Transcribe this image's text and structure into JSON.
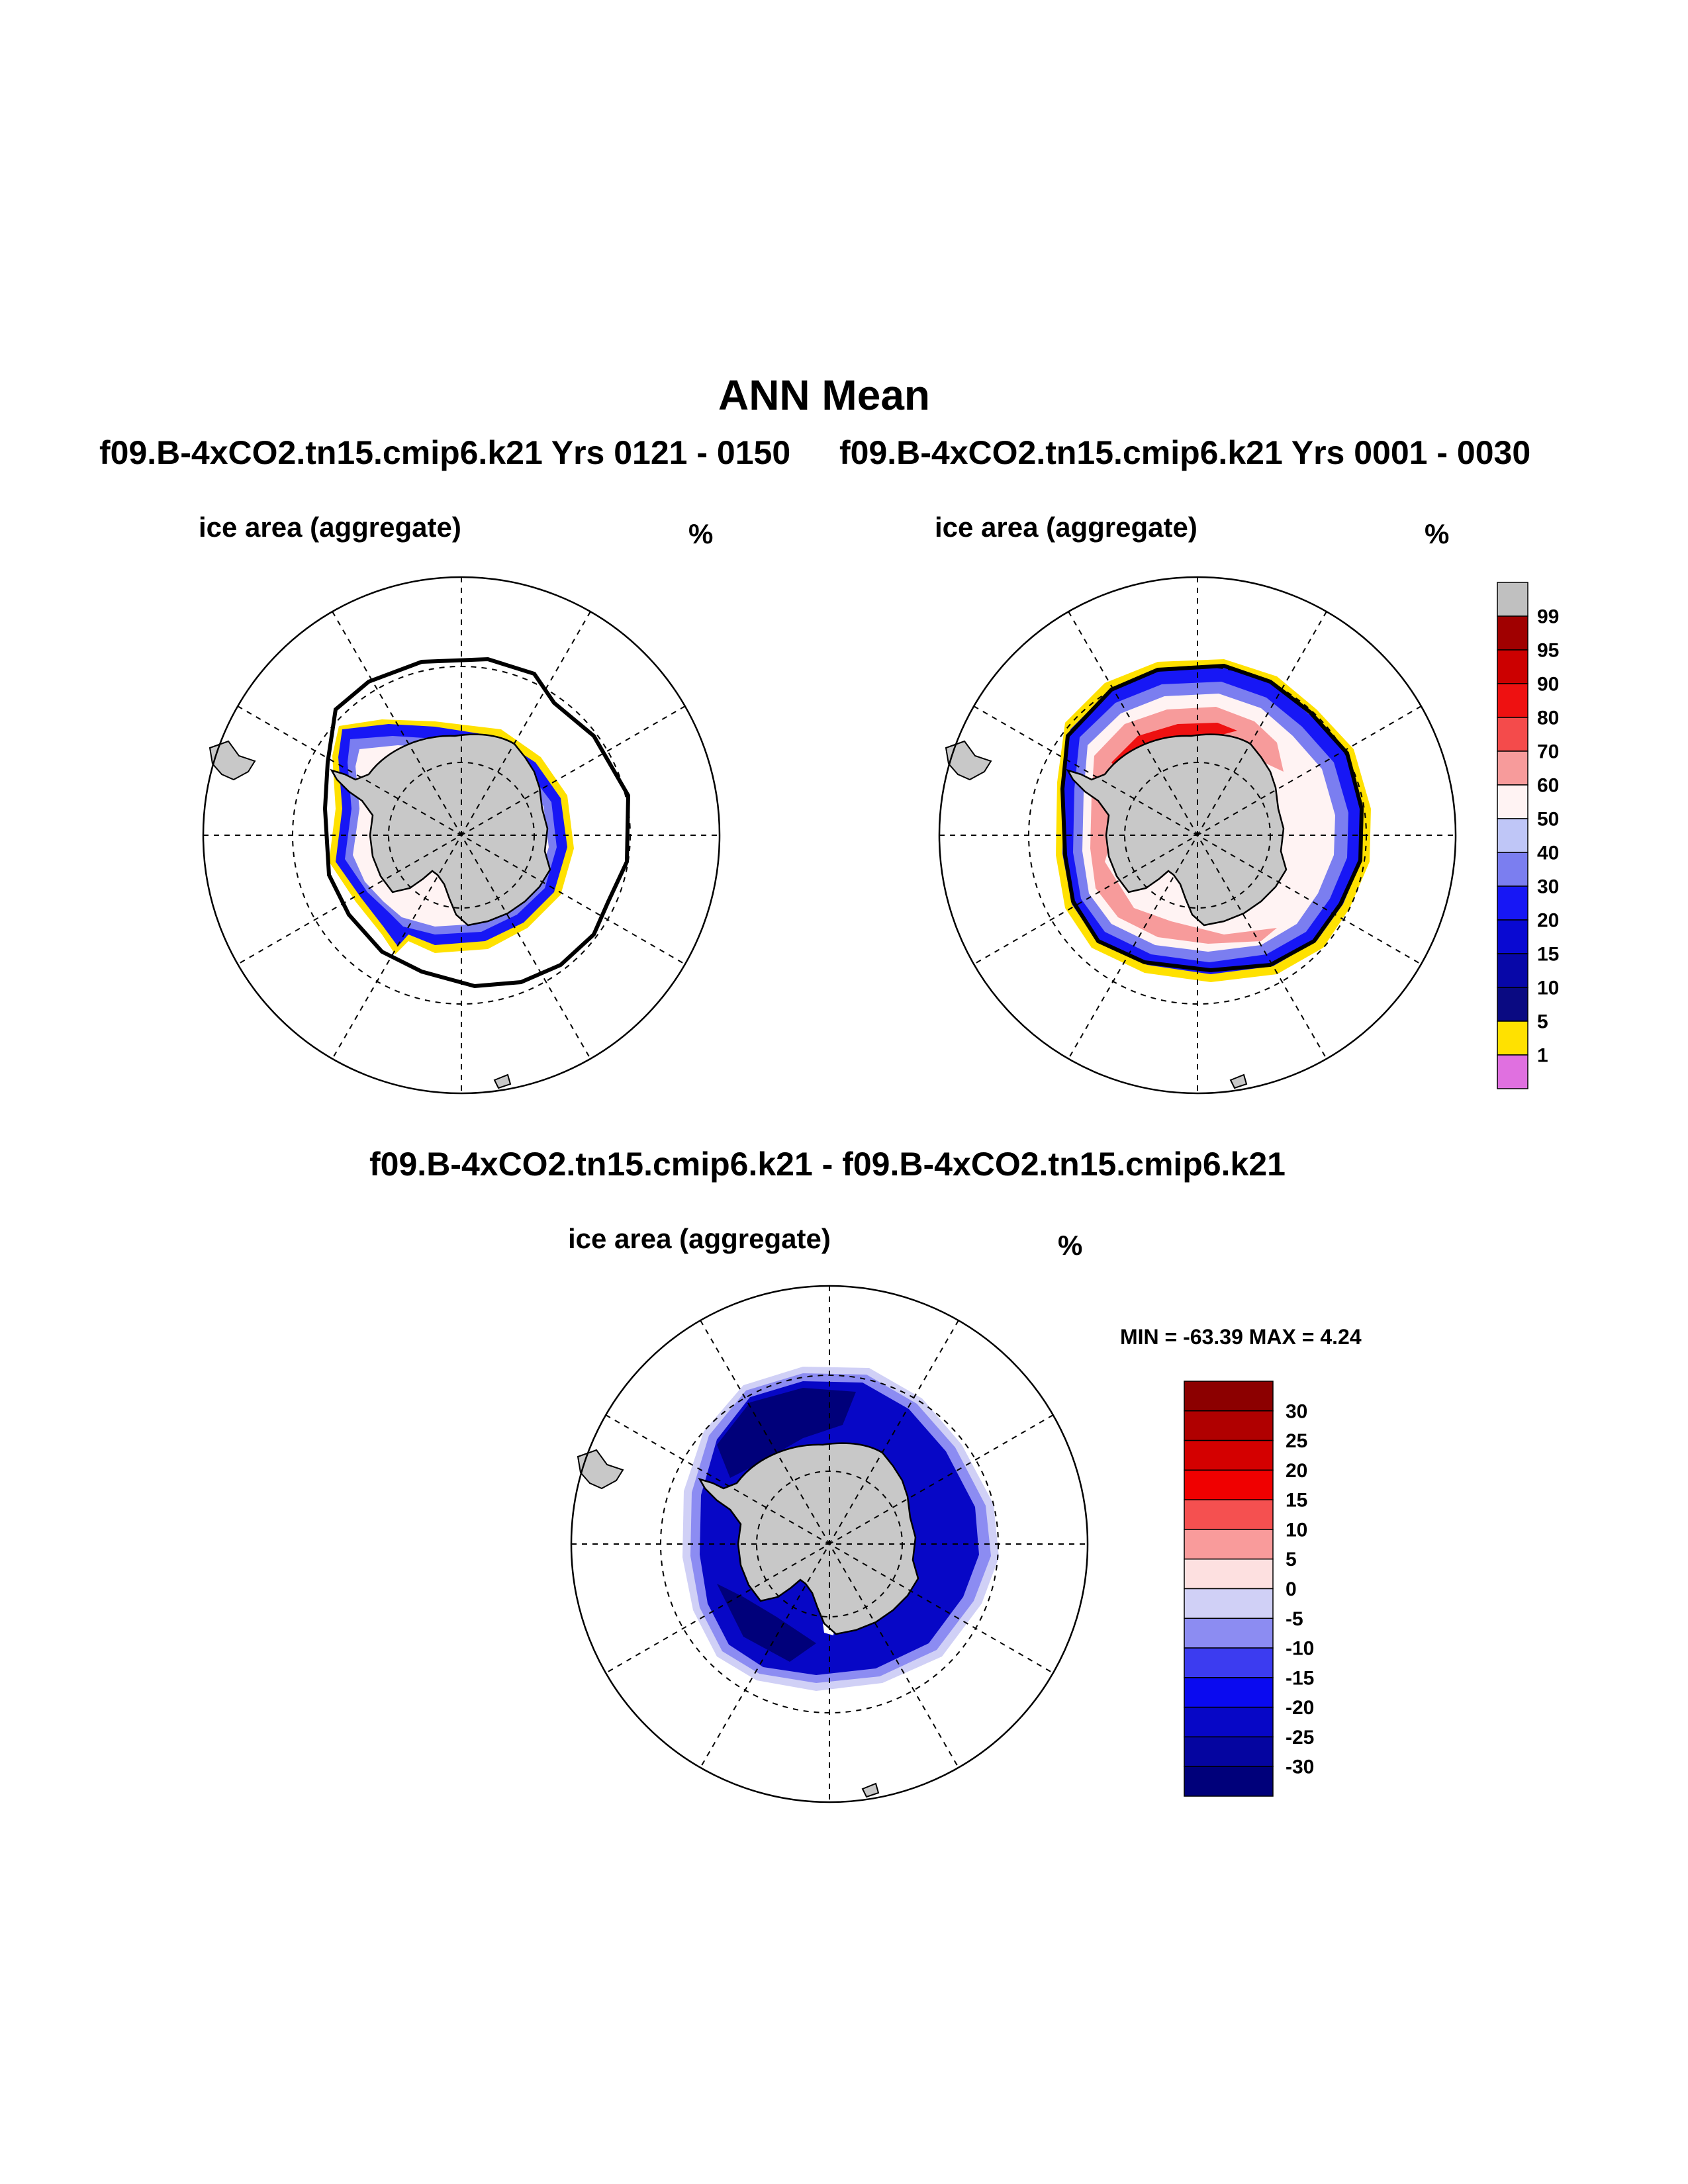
{
  "title": "ANN Mean",
  "runs": {
    "left": "f09.B-4xCO2.tn15.cmip6.k21  Yrs 0121 - 0150",
    "right": "f09.B-4xCO2.tn15.cmip6.k21  Yrs 0001 - 0030",
    "diff": "f09.B-4xCO2.tn15.cmip6.k21 - f09.B-4xCO2.tn15.cmip6.k21"
  },
  "panels": [
    {
      "id": "left",
      "variable": "ice area  (aggregate)",
      "units": "%"
    },
    {
      "id": "right",
      "variable": "ice area  (aggregate)",
      "units": "%"
    },
    {
      "id": "diff",
      "variable": "ice area  (aggregate)",
      "units": "%"
    }
  ],
  "diff_stats": {
    "text": "MIN = -63.39 MAX =   4.24",
    "min": -63.39,
    "max": 4.24
  },
  "colorbar_main": {
    "labels": [
      "99",
      "95",
      "90",
      "80",
      "70",
      "60",
      "50",
      "40",
      "30",
      "20",
      "15",
      "10",
      "5",
      "1"
    ],
    "colors": [
      "#c0c0c0",
      "#a00000",
      "#cc0000",
      "#ee1111",
      "#f44b4b",
      "#f79b9b",
      "#fff3f3",
      "#bfc6f7",
      "#7b7ef0",
      "#1717f5",
      "#0909d2",
      "#0707a8",
      "#0a0a82",
      "#ffe100",
      "#e070e0"
    ]
  },
  "colorbar_diff": {
    "labels": [
      "30",
      "25",
      "20",
      "15",
      "10",
      "5",
      "0",
      "-5",
      "-10",
      "-15",
      "-20",
      "-25",
      "-30"
    ],
    "colors": [
      "#8c0000",
      "#b00000",
      "#d40000",
      "#f00000",
      "#f55050",
      "#f99b9b",
      "#fde0e0",
      "#d0d0f6",
      "#8c8cf2",
      "#3c3cf0",
      "#0a0af0",
      "#0707c6",
      "#0505a0",
      "#00007a"
    ]
  },
  "map_colors": {
    "land": "#c8c8c8",
    "yellow": "#ffe100",
    "blue_dark": "#0a0a82",
    "blue": "#1717f5",
    "blue_mid": "#7b7ef0",
    "blue_light": "#bfc6f7",
    "white_ice": "#fff3f3",
    "red_light": "#f79b9b",
    "red": "#ee1111",
    "diff_dark": "#00007a",
    "diff_mid": "#0707c6",
    "diff_light": "#8c8cf2",
    "diff_pale": "#d0d0f6"
  }
}
